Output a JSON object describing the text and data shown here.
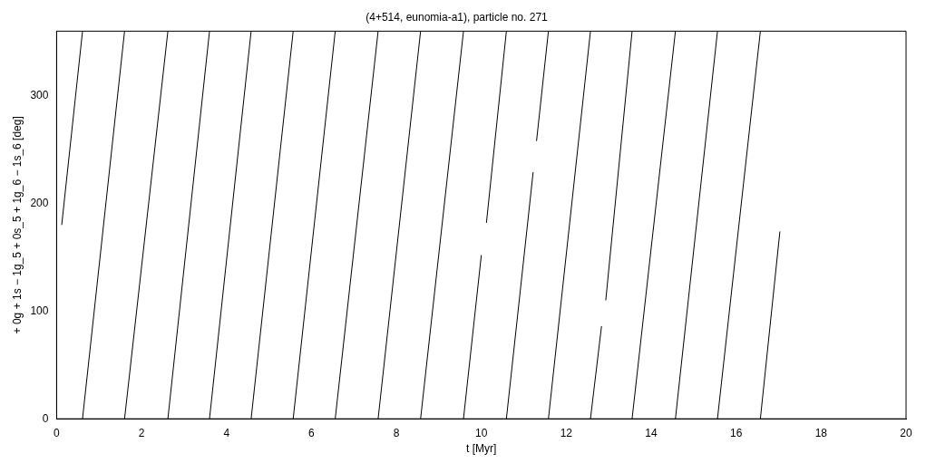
{
  "chart_data": {
    "type": "line",
    "title": "(4+514, eunomia-a1), particle no. 271",
    "xlabel": "t [Myr]",
    "ylabel": "+ 0g + 1s − 1g_5 + 0s_5 + 1g_6 − 1s_6 [deg]",
    "series": [
      {
        "color": "#000000",
        "x": [
          0.12,
          0.61
        ],
        "values": [
          180,
          360
        ]
      },
      {
        "color": "#000000",
        "x": [
          0.61,
          1.6
        ],
        "values": [
          0,
          360
        ]
      },
      {
        "color": "#000000",
        "x": [
          1.6,
          2.62
        ],
        "values": [
          0,
          360
        ]
      },
      {
        "color": "#000000",
        "x": [
          2.62,
          3.6
        ],
        "values": [
          0,
          360
        ]
      },
      {
        "color": "#000000",
        "x": [
          3.6,
          4.58
        ],
        "values": [
          0,
          360
        ]
      },
      {
        "color": "#000000",
        "x": [
          4.58,
          5.57
        ],
        "values": [
          0,
          360
        ]
      },
      {
        "color": "#000000",
        "x": [
          5.57,
          6.56
        ],
        "values": [
          0,
          360
        ]
      },
      {
        "color": "#000000",
        "x": [
          6.56,
          7.57
        ],
        "values": [
          0,
          360
        ]
      },
      {
        "color": "#000000",
        "x": [
          7.57,
          8.57
        ],
        "values": [
          0,
          360
        ]
      },
      {
        "color": "#000000",
        "x": [
          8.57,
          9.58
        ],
        "values": [
          0,
          360
        ]
      },
      {
        "color": "#000000",
        "x": [
          9.58,
          10.0
        ],
        "values": [
          0,
          152
        ]
      },
      {
        "color": "#000000",
        "x": [
          10.12,
          10.59
        ],
        "values": [
          182,
          360
        ]
      },
      {
        "color": "#000000",
        "x": [
          10.59,
          11.22
        ],
        "values": [
          0,
          229
        ]
      },
      {
        "color": "#000000",
        "x": [
          11.3,
          11.58
        ],
        "values": [
          258,
          360
        ]
      },
      {
        "color": "#000000",
        "x": [
          11.58,
          12.57
        ],
        "values": [
          0,
          360
        ]
      },
      {
        "color": "#000000",
        "x": [
          12.57,
          12.83
        ],
        "values": [
          0,
          86
        ]
      },
      {
        "color": "#000000",
        "x": [
          12.93,
          13.55
        ],
        "values": [
          110,
          360
        ]
      },
      {
        "color": "#000000",
        "x": [
          13.55,
          14.57
        ],
        "values": [
          0,
          360
        ]
      },
      {
        "color": "#000000",
        "x": [
          14.57,
          15.56
        ],
        "values": [
          0,
          360
        ]
      },
      {
        "color": "#000000",
        "x": [
          15.56,
          16.57
        ],
        "values": [
          0,
          360
        ]
      },
      {
        "color": "#000000",
        "x": [
          16.57,
          17.03
        ],
        "values": [
          0,
          174
        ]
      }
    ],
    "xlim": [
      0,
      20
    ],
    "xticks": [
      0,
      2,
      4,
      6,
      8,
      10,
      12,
      14,
      16,
      18,
      20
    ],
    "ylim": [
      0,
      360
    ],
    "yticks": [
      0,
      100,
      200,
      300
    ],
    "grid": false,
    "legend": false,
    "marker": "none",
    "line_style": "solid"
  }
}
